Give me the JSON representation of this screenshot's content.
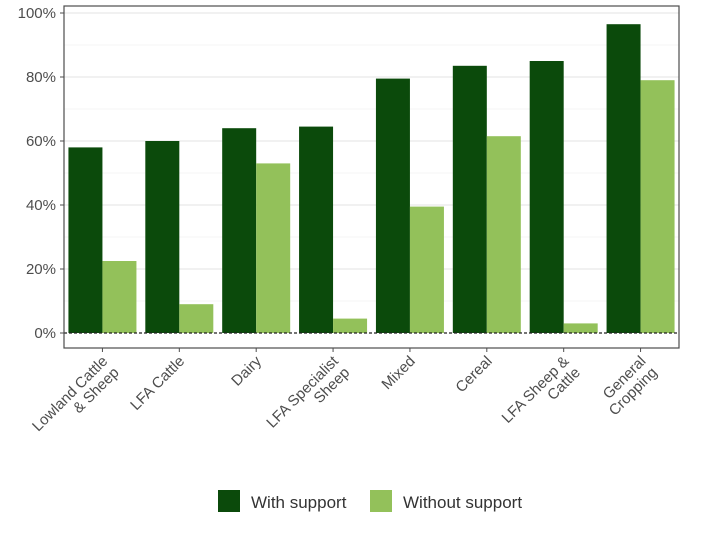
{
  "chart_data": {
    "type": "bar",
    "categories": [
      [
        "Lowland Cattle",
        "& Sheep"
      ],
      [
        "LFA Cattle"
      ],
      [
        "Dairy"
      ],
      [
        "LFA Specialist",
        "Sheep"
      ],
      [
        "Mixed"
      ],
      [
        "Cereal"
      ],
      [
        "LFA Sheep &",
        "Cattle"
      ],
      [
        "General",
        "Cropping"
      ]
    ],
    "series": [
      {
        "name": "With support",
        "color": "#0b4a0b",
        "values": [
          58,
          60,
          64,
          64.5,
          79.5,
          83.5,
          85,
          96.5
        ]
      },
      {
        "name": "Without support",
        "color": "#93c15a",
        "values": [
          22.5,
          9,
          53,
          4.5,
          39.5,
          61.5,
          3,
          79
        ]
      }
    ],
    "y_ticks": [
      "0%",
      "20%",
      "40%",
      "60%",
      "80%",
      "100%"
    ],
    "ylim": [
      0,
      100
    ],
    "title": "",
    "xlabel": "",
    "ylabel": "",
    "grid": true,
    "legend_position": "bottom"
  }
}
